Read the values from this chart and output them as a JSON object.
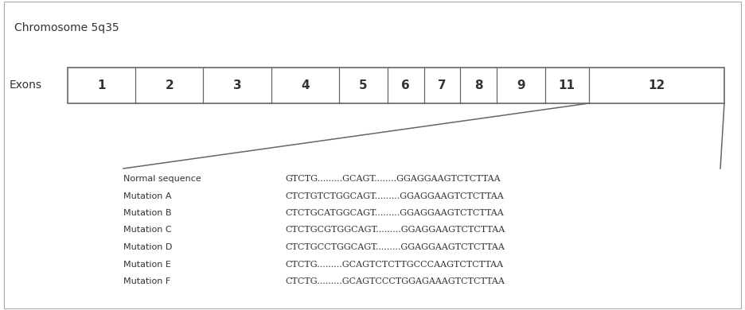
{
  "title": "Chromosome 5q35",
  "exons_label": "Exons",
  "exon_numbers": [
    "1",
    "2",
    "3",
    "4",
    "5",
    "6",
    "7",
    "8",
    "9",
    "11",
    "12"
  ],
  "exon_widths": [
    1.4,
    1.4,
    1.4,
    1.4,
    1.0,
    0.75,
    0.75,
    0.75,
    1.0,
    0.9,
    2.8
  ],
  "background_color": "#ffffff",
  "border_color": "#666666",
  "box_fill": "#ffffff",
  "sequence_labels": [
    "Normal sequence",
    "Mutation A",
    "Mutation B",
    "Mutation C",
    "Mutation D",
    "Mutation E",
    "Mutation F"
  ],
  "sequence_texts": [
    "GTCTG.........GCAGT........GGAGGAAGTCTCTTAA",
    "CTCTGTCTGGCAGT.........GGAGGAAGTCTCTTAA",
    "CTCTGCATGGCAGT.........GGAGGAAGTCTCTTAA",
    "CTCTGCGTGGCAGT.........GGAGGAAGTCTCTTAA",
    "CTCTGCCTGGCAGT.........GGAGGAAGTCTCTTAA",
    "CTCTG.........GCAGTCTCTTGCCCAAGTCTCTTAA",
    "CTCTG.........GCAGTCCCTGGAGAAAGTCTCTTAA"
  ],
  "line_color": "#666666",
  "text_color": "#333333",
  "font_size_title": 10,
  "font_size_exon": 11,
  "font_size_exons_label": 10,
  "font_size_seq_label": 8,
  "font_size_seq": 8
}
